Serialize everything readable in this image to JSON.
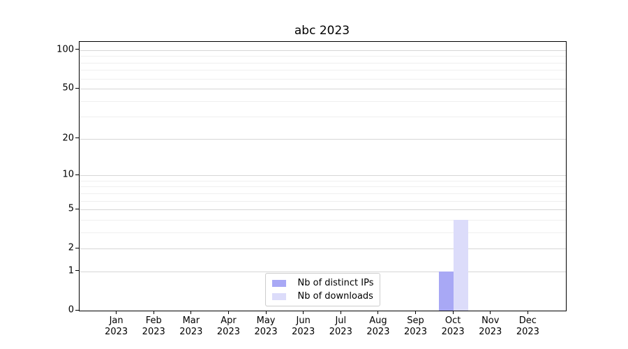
{
  "chart_data": {
    "type": "bar",
    "title": "abc 2023",
    "categories": [
      "Jan",
      "Feb",
      "Mar",
      "Apr",
      "May",
      "Jun",
      "Jul",
      "Aug",
      "Sep",
      "Oct",
      "Nov",
      "Dec"
    ],
    "category_year": "2023",
    "series": [
      {
        "name": "Nb of distinct IPs",
        "color": "#a8a8f5",
        "values": [
          0,
          0,
          0,
          0,
          0,
          0,
          0,
          0,
          0,
          1,
          0,
          0
        ]
      },
      {
        "name": "Nb of downloads",
        "color": "#dcdcfa",
        "values": [
          0,
          0,
          0,
          0,
          0,
          0,
          0,
          0,
          0,
          4,
          0,
          0
        ]
      }
    ],
    "xlabel": "",
    "ylabel": "",
    "yscale": "log1p",
    "ylim": [
      0,
      116
    ],
    "y_major_ticks": [
      0,
      1,
      2,
      5,
      10,
      20,
      50,
      100
    ],
    "y_minor_ticks": [
      3,
      4,
      6,
      7,
      8,
      9,
      30,
      40,
      60,
      70,
      80,
      90
    ],
    "grid": true,
    "legend_position": "lower center"
  },
  "colors": {
    "major_grid": "#d6d6d6",
    "minor_grid": "#efefef",
    "axis": "#000000",
    "legend_border": "#cccccc",
    "background": "#ffffff"
  }
}
